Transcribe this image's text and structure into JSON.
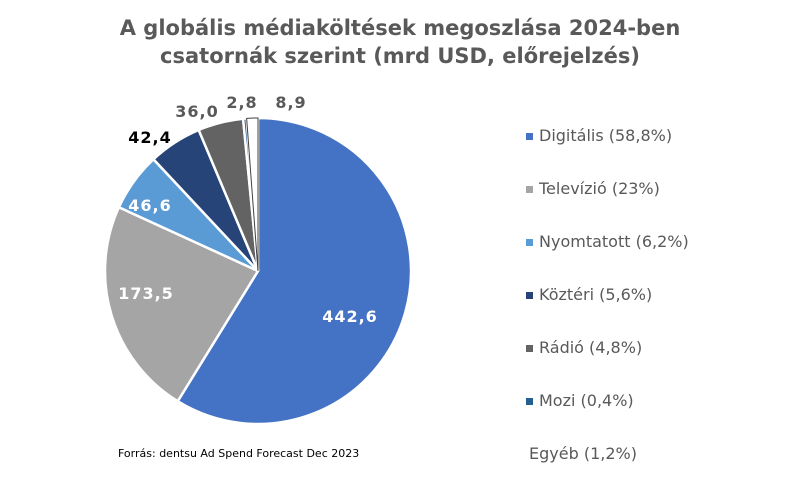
{
  "chart_data": {
    "type": "pie",
    "title_lines": [
      "A globális médiaköltések megoszlása 2024-ben",
      "csatornák szerint (mrd USD, előrejelzés)"
    ],
    "slices": [
      {
        "label": "Digitális (58,8%)",
        "value": 442.6,
        "display": "442,6",
        "color": "#4472C4",
        "label_color": "#ffffff"
      },
      {
        "label": "Televízió (23%)",
        "value": 173.5,
        "display": "173,5",
        "color": "#A5A5A5",
        "label_color": "#ffffff"
      },
      {
        "label": "Nyomtatott (6,2%)",
        "value": 46.6,
        "display": "46,6",
        "color": "#5B9BD5",
        "label_color": "#ffffff"
      },
      {
        "label": "Köztéri (5,6%)",
        "value": 42.4,
        "display": "42,4",
        "color": "#264478",
        "label_color": "#000000"
      },
      {
        "label": "Rádió (4,8%)",
        "value": 36.0,
        "display": "36,0",
        "color": "#636363",
        "label_color": "#595959"
      },
      {
        "label": "Mozi (0,4%)",
        "value": 2.8,
        "display": "2,8",
        "color": "#255E91",
        "label_color": "#595959"
      },
      {
        "label": "Egyéb (1,2%)",
        "value": 8.9,
        "display": "8,9",
        "color": "#ffffff",
        "label_color": "#595959"
      }
    ],
    "legend_position": "right",
    "source": "Forrás: dentsu Ad Spend Forecast Dec 2023"
  }
}
